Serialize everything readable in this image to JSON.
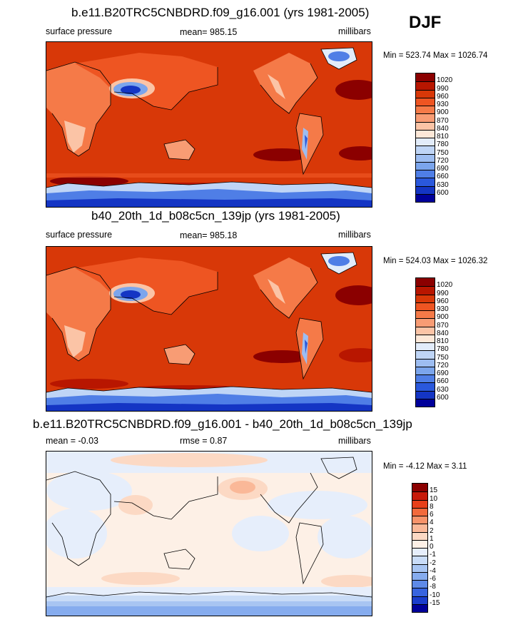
{
  "season": "DJF",
  "panels": [
    {
      "title": "b.e11.B20TRC5CNBDRD.f09_g16.001 (yrs 1981-2005)",
      "left_label": "surface pressure",
      "center_label": "mean= 985.15",
      "right_label": "millibars",
      "minmax": "Min = 523.74 Max = 1026.74",
      "colorbar": {
        "labels": [
          "1020",
          "990",
          "960",
          "930",
          "900",
          "870",
          "840",
          "810",
          "780",
          "750",
          "720",
          "690",
          "660",
          "630",
          "600"
        ],
        "colors": [
          "#8b0000",
          "#b81600",
          "#d83808",
          "#ee5522",
          "#f57a48",
          "#f89c74",
          "#fbc4a6",
          "#fde8d8",
          "#e2ecfa",
          "#bfd5f6",
          "#9dbdf1",
          "#7ba5ec",
          "#4f7ee6",
          "#2a58dc",
          "#1435c4",
          "#00009a"
        ]
      }
    },
    {
      "title": "b40_20th_1d_b08c5cn_139jp (yrs 1981-2005)",
      "left_label": "surface pressure",
      "center_label": "mean= 985.18",
      "right_label": "millibars",
      "minmax": "Min = 524.03 Max = 1026.32",
      "colorbar": {
        "labels": [
          "1020",
          "990",
          "960",
          "930",
          "900",
          "870",
          "840",
          "810",
          "780",
          "750",
          "720",
          "690",
          "660",
          "630",
          "600"
        ],
        "colors": [
          "#8b0000",
          "#b81600",
          "#d83808",
          "#ee5522",
          "#f57a48",
          "#f89c74",
          "#fbc4a6",
          "#fde8d8",
          "#e2ecfa",
          "#bfd5f6",
          "#9dbdf1",
          "#7ba5ec",
          "#4f7ee6",
          "#2a58dc",
          "#1435c4",
          "#00009a"
        ]
      }
    },
    {
      "title": "b.e11.B20TRC5CNBDRD.f09_g16.001 - b40_20th_1d_b08c5cn_139jp",
      "left_label": "mean =  -0.03",
      "center_label": "rmse =   0.87",
      "right_label": "millibars",
      "minmax": "Min =  -4.12 Max =   3.11",
      "colorbar": {
        "labels": [
          "15",
          "10",
          "8",
          "6",
          "4",
          "2",
          "1",
          "0",
          "-1",
          "-2",
          "-4",
          "-6",
          "-8",
          "-10",
          "-15"
        ],
        "colors": [
          "#8b0000",
          "#c81a0a",
          "#e8401a",
          "#f26a3c",
          "#f7936a",
          "#fab898",
          "#fcd9c4",
          "#fdf0e6",
          "#e6eefb",
          "#c9dcf7",
          "#a8c5f2",
          "#86acee",
          "#5e8ae8",
          "#3764df",
          "#1a3dcc",
          "#00009a"
        ]
      }
    }
  ]
}
